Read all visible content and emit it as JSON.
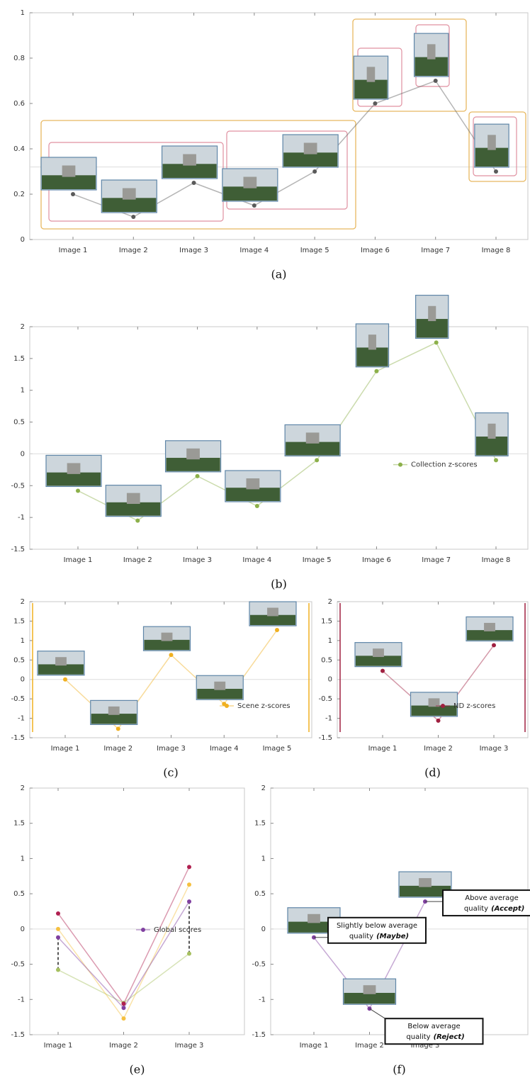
{
  "chart_data": [
    {
      "type": "line",
      "caption": "(a)",
      "categories": [
        "Image 1",
        "Image 2",
        "Image 3",
        "Image 4",
        "Image 5",
        "Image 6",
        "Image 7",
        "Image 8"
      ],
      "series": [
        {
          "color": "#5a5a5a",
          "values": [
            0.2,
            0.1,
            0.25,
            0.15,
            0.3,
            0.6,
            0.7,
            0.3
          ]
        }
      ],
      "ylim": [
        0,
        1
      ],
      "yticks": [
        0,
        0.2,
        0.4,
        0.6,
        0.8,
        1
      ],
      "refline": 0.32,
      "thumbnails": true,
      "group_boxes": true
    },
    {
      "type": "line",
      "caption": "(b)",
      "categories": [
        "Image 1",
        "Image 2",
        "Image 3",
        "Image 4",
        "Image 5",
        "Image 6",
        "Image 7",
        "Image 8"
      ],
      "series": [
        {
          "name": "Collection z-scores",
          "color": "#8cb04a",
          "values": [
            -0.58,
            -1.05,
            -0.35,
            -0.82,
            -0.1,
            1.3,
            1.75,
            -0.1
          ]
        }
      ],
      "ylim": [
        -1.5,
        2
      ],
      "yticks": [
        -1.5,
        -1,
        -0.5,
        0,
        0.5,
        1,
        1.5,
        2
      ],
      "refline": 0,
      "thumbnails": true,
      "legend": "right"
    },
    {
      "type": "line",
      "caption": "(c)",
      "categories": [
        "Image 1",
        "Image 2",
        "Image 3",
        "Image 4",
        "Image 5"
      ],
      "series": [
        {
          "name": "Scene z-scores",
          "color": "#f0b020",
          "values": [
            0,
            -1.27,
            0.63,
            -0.63,
            1.27
          ]
        }
      ],
      "ylim": [
        -1.5,
        2
      ],
      "yticks": [
        -1.5,
        -1,
        -0.5,
        0,
        0.5,
        1,
        1.5,
        2
      ],
      "refline": 0,
      "thumbnails": true,
      "legend": "lower right",
      "side_lines": true
    },
    {
      "type": "line",
      "caption": "(d)",
      "categories": [
        "Image 1",
        "Image 2",
        "Image 3"
      ],
      "series": [
        {
          "name": "ND z-scores",
          "color": "#a02040",
          "values": [
            0.22,
            -1.06,
            0.88
          ]
        }
      ],
      "ylim": [
        -1.5,
        2
      ],
      "yticks": [
        -1.5,
        -1,
        -0.5,
        0,
        0.5,
        1,
        1.5,
        2
      ],
      "refline": 0,
      "thumbnails": true,
      "legend": "lower right",
      "side_lines": true
    },
    {
      "type": "line",
      "caption": "(e)",
      "categories": [
        "Image 1",
        "Image 2",
        "Image 3"
      ],
      "series": [
        {
          "color": "#a6c060",
          "values": [
            -0.58,
            -1.05,
            -0.35
          ]
        },
        {
          "color": "#f5c040",
          "values": [
            0,
            -1.27,
            0.63
          ]
        },
        {
          "color": "#b02050",
          "values": [
            0.22,
            -1.06,
            0.88
          ]
        },
        {
          "name": "Global scores",
          "color": "#8040a0",
          "values": [
            -0.12,
            -1.12,
            0.39
          ]
        }
      ],
      "ylim": [
        -1.5,
        2
      ],
      "yticks": [
        -1.5,
        -1,
        -0.5,
        0,
        0.5,
        1,
        1.5,
        2
      ],
      "refline": 0,
      "legend": "lower right",
      "arrows": true
    },
    {
      "type": "line",
      "caption": "(f)",
      "categories": [
        "Image 1",
        "Image 2",
        "Image 3"
      ],
      "series": [
        {
          "color": "#8040a0",
          "values": [
            -0.12,
            -1.13,
            0.39
          ]
        }
      ],
      "ylim": [
        -1.5,
        2
      ],
      "yticks": [
        -1.5,
        -1,
        -0.5,
        0,
        0.5,
        1,
        1.5,
        2
      ],
      "refline": 0,
      "thumbnails": true,
      "annotations": [
        {
          "lines": [
            "Slightly below average",
            "quality"
          ],
          "verdict": "(Maybe)"
        },
        {
          "lines": [
            "Below average",
            "quality"
          ],
          "verdict": "(Reject)"
        },
        {
          "lines": [
            "Above average",
            "quality"
          ],
          "verdict": "(Accept)"
        }
      ]
    }
  ]
}
